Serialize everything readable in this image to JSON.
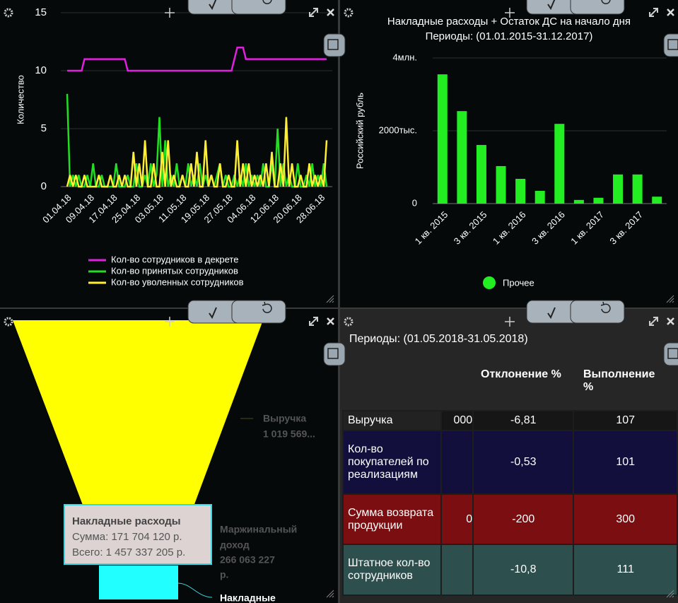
{
  "chart_data": [
    {
      "type": "line",
      "ylabel": "Количество",
      "categories": [
        "01.04.18",
        null,
        null,
        null,
        null,
        null,
        null,
        null,
        "09.04.18",
        null,
        null,
        null,
        null,
        null,
        null,
        null,
        "17.04.18",
        null,
        null,
        null,
        null,
        null,
        null,
        null,
        "25.04.18",
        null,
        null,
        null,
        null,
        null,
        null,
        null,
        "03.05.18",
        null,
        null,
        null,
        null,
        null,
        null,
        null,
        "11.05.18",
        null,
        null,
        null,
        null,
        null,
        null,
        null,
        "19.05.18",
        null,
        null,
        null,
        null,
        null,
        null,
        null,
        "27.05.18",
        null,
        null,
        null,
        null,
        null,
        null,
        null,
        "04.06.18",
        null,
        null,
        null,
        null,
        null,
        null,
        null,
        "12.06.18",
        null,
        null,
        null,
        null,
        null,
        null,
        null,
        "20.06.18",
        null,
        null,
        null,
        null,
        null,
        null,
        null,
        "28.06.18",
        null,
        null
      ],
      "series": [
        {
          "name": "Кол-во сотрудников в декрете",
          "color": "#e020e0",
          "values": [
            10,
            10,
            10,
            10,
            10,
            10,
            11,
            11,
            11,
            11,
            11,
            11,
            11,
            11,
            11,
            11,
            11,
            11,
            11,
            11,
            11,
            10,
            10,
            10,
            10,
            10,
            10,
            10,
            10,
            10,
            10,
            10,
            10,
            10,
            10,
            10,
            10,
            10,
            10,
            10,
            10,
            10,
            10,
            10,
            10,
            10,
            10,
            10,
            10,
            10,
            10,
            10,
            10,
            10,
            10,
            10,
            10,
            10,
            11,
            12,
            12,
            12,
            11,
            11,
            11,
            11,
            11,
            11,
            11,
            11,
            11,
            11,
            11,
            11,
            11,
            11,
            11,
            11,
            11,
            11,
            11,
            11,
            11,
            11,
            11,
            11,
            11,
            11,
            11,
            11,
            11
          ]
        },
        {
          "name": "Кол-во принятых сотрудников",
          "color": "#22dd22",
          "values": [
            8,
            0,
            1,
            0,
            1,
            0,
            0,
            1,
            0,
            2,
            0,
            0,
            1,
            0,
            0,
            0,
            0,
            2,
            0,
            0,
            0,
            1,
            0,
            0,
            2,
            0,
            0,
            1,
            0,
            2,
            0,
            1,
            6,
            0,
            4,
            0,
            1,
            0,
            2,
            0,
            1,
            0,
            2,
            0,
            1,
            0,
            2,
            0,
            1,
            0,
            1,
            0,
            1,
            2,
            0,
            1,
            0,
            0,
            1,
            0,
            1,
            0,
            2,
            0,
            1,
            0,
            1,
            0,
            2,
            0,
            0,
            2,
            0,
            5,
            0,
            2,
            0,
            1,
            0,
            0,
            2,
            0,
            0,
            1,
            0,
            2,
            0,
            1,
            0,
            2,
            0
          ]
        },
        {
          "name": "Кол-во уволенных сотрудников",
          "color": "#ffee33",
          "values": [
            0,
            1,
            0,
            1,
            0,
            0,
            1,
            0,
            0,
            0,
            0,
            1,
            0,
            0,
            0,
            1,
            0,
            0,
            1,
            0,
            1,
            0,
            0,
            3,
            0,
            2,
            0,
            4,
            0,
            0,
            2,
            0,
            0,
            3,
            0,
            4,
            0,
            1,
            0,
            0,
            1,
            0,
            0,
            2,
            0,
            3,
            0,
            0,
            4,
            0,
            1,
            0,
            0,
            2,
            0,
            0,
            1,
            0,
            0,
            4,
            0,
            2,
            0,
            2,
            0,
            1,
            0,
            1,
            0,
            2,
            0,
            3,
            0,
            0,
            2,
            0,
            6,
            0,
            2,
            0,
            0,
            1,
            0,
            0,
            2,
            0,
            1,
            0,
            1,
            0,
            4
          ]
        }
      ],
      "ylim": [
        0,
        15
      ],
      "yticks": [
        0,
        5,
        10,
        15
      ],
      "grid": true
    },
    {
      "type": "bar",
      "title": "Накладные расходы + Остаток ДС на начало дня",
      "subtitle": "Периоды: (01.01.2015-31.12.2017)",
      "ylabel": "Российский рубль",
      "categories": [
        "1 кв. 2015",
        null,
        "3 кв. 2015",
        null,
        "1 кв. 2016",
        null,
        "3 кв. 2016",
        null,
        "1 кв. 2017",
        null,
        "3 кв. 2017",
        null
      ],
      "series": [
        {
          "name": "Прочее",
          "color": "#22ee22",
          "values": [
            3550000,
            2540000,
            1610000,
            1030000,
            680000,
            350000,
            2190000,
            100000,
            160000,
            800000,
            800000,
            190000
          ]
        }
      ],
      "ylim": [
        0,
        4000000
      ],
      "yticks": [
        {
          "value": 0,
          "label": "0"
        },
        {
          "value": 2000000,
          "label": "2000тыс."
        },
        {
          "value": 4000000,
          "label": "4млн."
        }
      ],
      "grid": true
    }
  ],
  "funnel": {
    "revenue_label": "Выручка",
    "revenue_value": "1 019 569...",
    "margin_lines": [
      "Маржинальный",
      "доход",
      "266 063 227",
      "р."
    ],
    "overhead_label": "Накладные",
    "tooltip": {
      "title": "Накладные расходы",
      "sum": "Сумма: 171 704 120 р.",
      "total": "Всего: 1 457 337 205 р."
    }
  },
  "table": {
    "period": "Периоды: (01.05.2018-31.05.2018)",
    "headers": [
      "Отклонение %",
      "Выполнение %"
    ],
    "rows": [
      {
        "label": "Выручка",
        "cut": "000",
        "deviation": "-6,81",
        "fulfillment": "107"
      },
      {
        "label": "Кол-во покупателей по реализациям",
        "deviation": "-0,53",
        "fulfillment": "101"
      },
      {
        "label": "Сумма возврата продукции",
        "cut": "0",
        "deviation": "-200",
        "fulfillment": "300"
      },
      {
        "label": "Штатное кол-во сотрудников",
        "deviation": "-10,8",
        "fulfillment": "111"
      }
    ]
  }
}
